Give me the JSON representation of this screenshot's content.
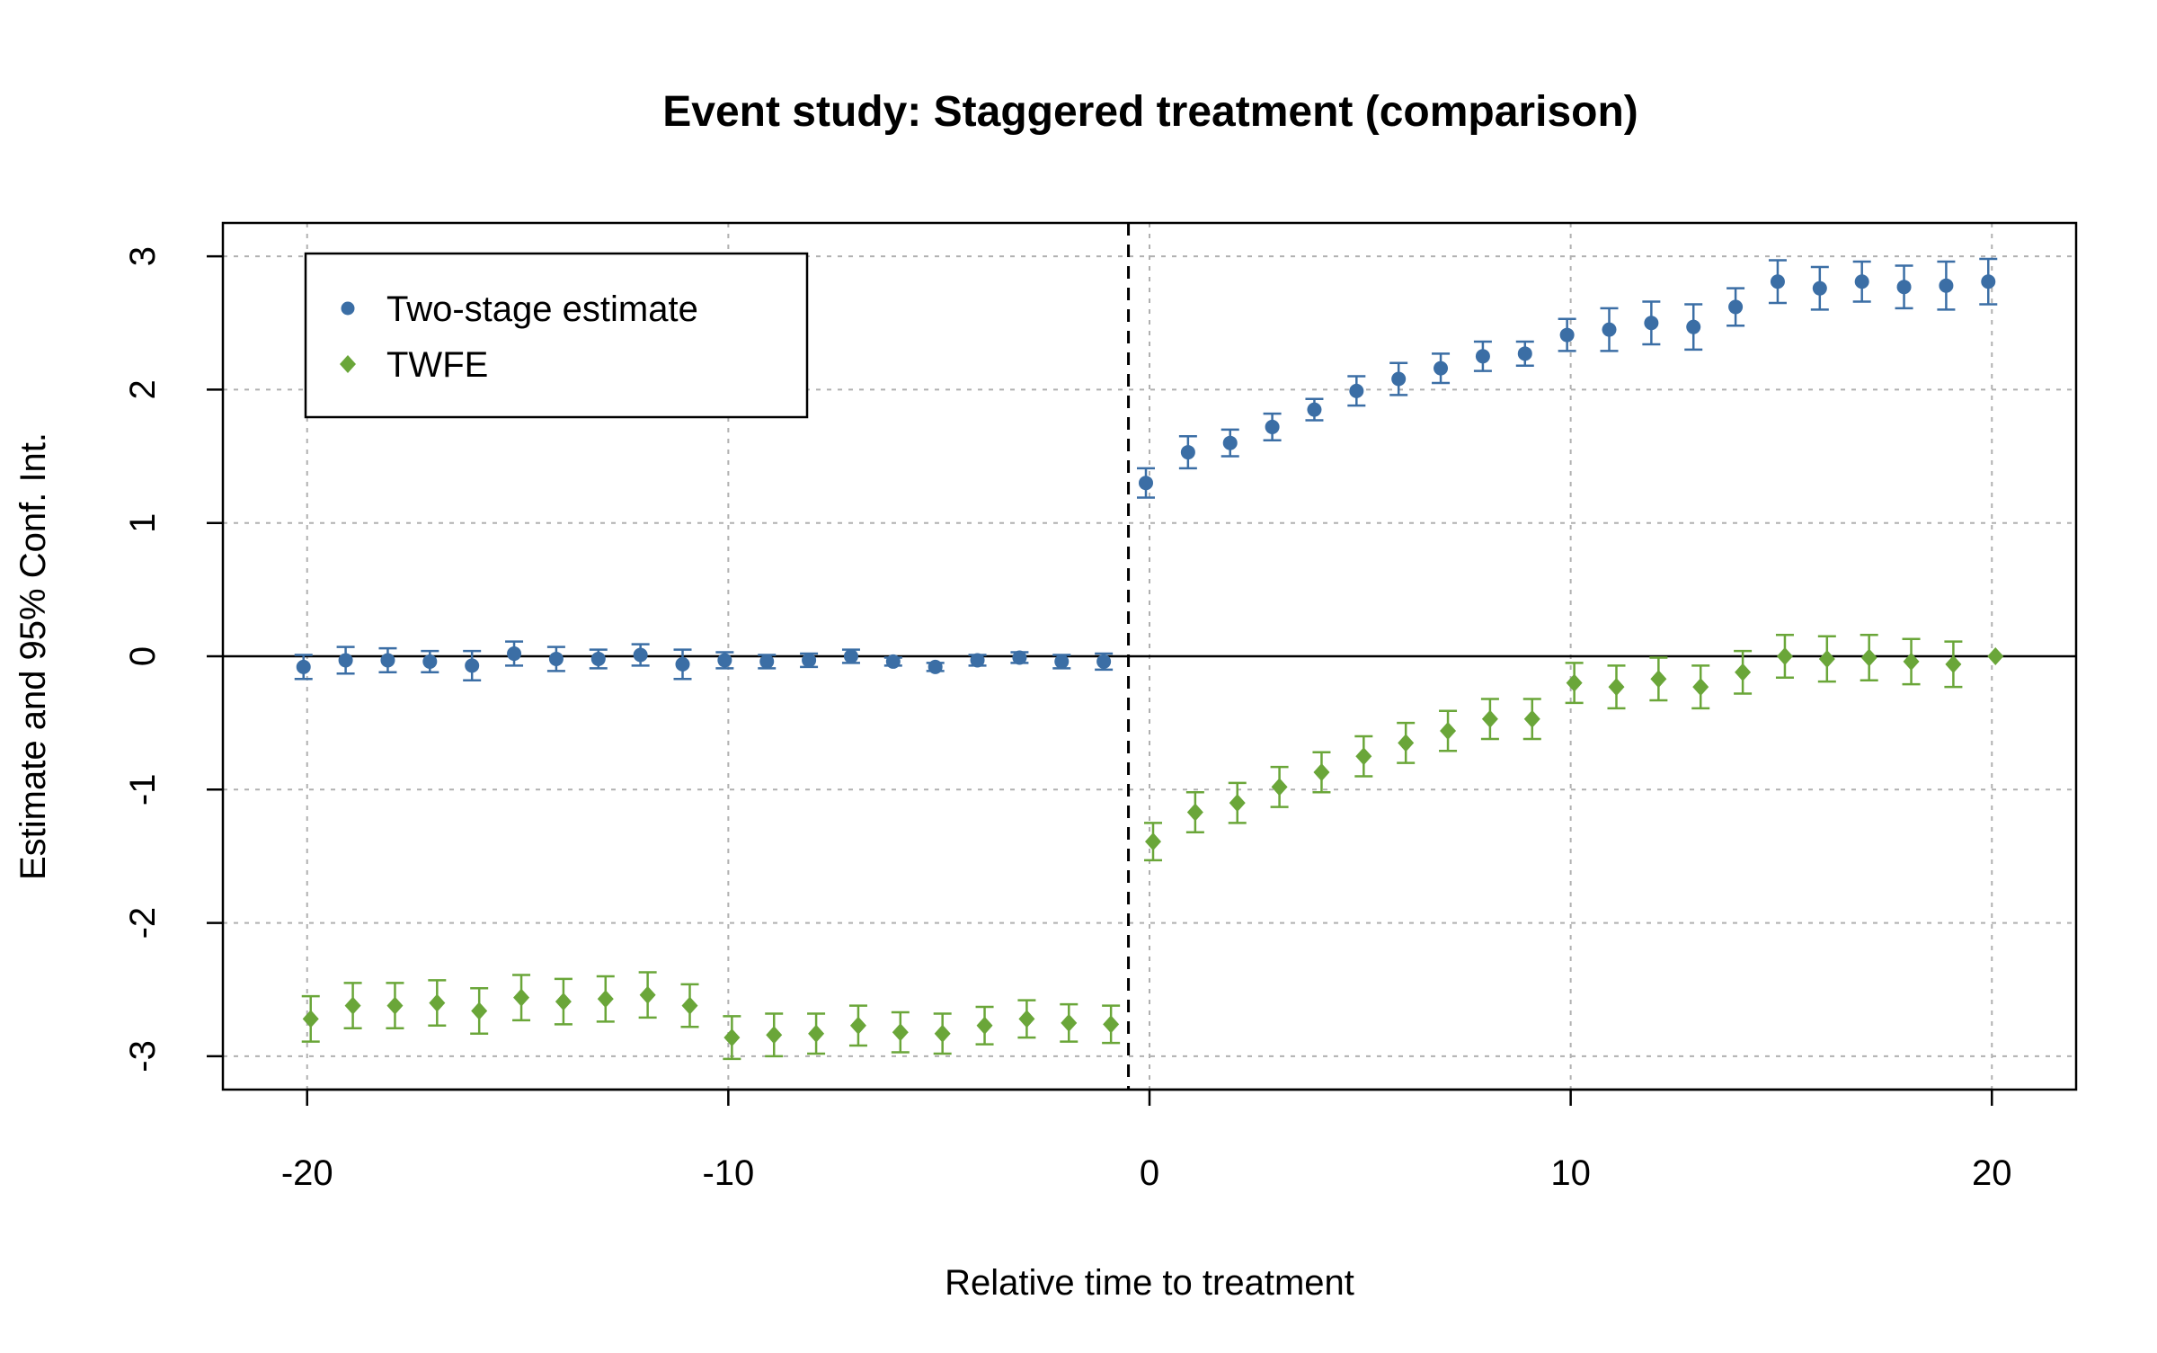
{
  "chart_data": {
    "type": "scatter",
    "title": "Event study: Staggered treatment (comparison)",
    "xlabel": "Relative time to treatment",
    "ylabel": "Estimate and 95% Conf. Int.",
    "xlim": [
      -22,
      22
    ],
    "ylim": [
      -3.25,
      3.25
    ],
    "x_ticks": [
      -20,
      -10,
      0,
      10,
      20
    ],
    "y_ticks": [
      -3,
      -2,
      -1,
      0,
      1,
      2,
      3
    ],
    "x_tick_labels": [
      "-20",
      "-10",
      "0",
      "10",
      "20"
    ],
    "y_tick_labels": [
      "-3",
      "-2",
      "-1",
      "0",
      "1",
      "2",
      "3"
    ],
    "grid": true,
    "reference_lines": {
      "horizontal_solid_y": 0,
      "vertical_dashed_x": -0.5
    },
    "legend_position": "top-left",
    "series": [
      {
        "name": "Two-stage estimate",
        "color": "#3b6ea5",
        "marker": "circle",
        "x": [
          -20,
          -19,
          -18,
          -17,
          -16,
          -15,
          -14,
          -13,
          -12,
          -11,
          -10,
          -9,
          -8,
          -7,
          -6,
          -5,
          -4,
          -3,
          -2,
          -1,
          0,
          1,
          2,
          3,
          4,
          5,
          6,
          7,
          8,
          9,
          10,
          11,
          12,
          13,
          14,
          15,
          16,
          17,
          18,
          19,
          20
        ],
        "y": [
          -0.08,
          -0.03,
          -0.03,
          -0.04,
          -0.07,
          0.02,
          -0.02,
          -0.02,
          0.01,
          -0.06,
          -0.03,
          -0.04,
          -0.03,
          0.0,
          -0.04,
          -0.08,
          -0.03,
          -0.01,
          -0.04,
          -0.04,
          1.3,
          1.53,
          1.6,
          1.72,
          1.85,
          1.99,
          2.08,
          2.16,
          2.25,
          2.27,
          2.41,
          2.45,
          2.5,
          2.47,
          2.62,
          2.81,
          2.76,
          2.81,
          2.77,
          2.78,
          2.81
        ],
        "ci_half_width": [
          0.09,
          0.1,
          0.09,
          0.08,
          0.11,
          0.09,
          0.09,
          0.07,
          0.08,
          0.11,
          0.06,
          0.05,
          0.05,
          0.05,
          0.03,
          0.03,
          0.04,
          0.04,
          0.05,
          0.06,
          0.11,
          0.12,
          0.1,
          0.1,
          0.08,
          0.11,
          0.12,
          0.11,
          0.11,
          0.09,
          0.12,
          0.16,
          0.16,
          0.17,
          0.14,
          0.16,
          0.16,
          0.15,
          0.16,
          0.18,
          0.17
        ]
      },
      {
        "name": "TWFE",
        "color": "#6aa639",
        "marker": "diamond",
        "x": [
          -20,
          -19,
          -18,
          -17,
          -16,
          -15,
          -14,
          -13,
          -12,
          -11,
          -10,
          -9,
          -8,
          -7,
          -6,
          -5,
          -4,
          -3,
          -2,
          -1,
          0,
          1,
          2,
          3,
          4,
          5,
          6,
          7,
          8,
          9,
          10,
          11,
          12,
          13,
          14,
          15,
          16,
          17,
          18,
          19,
          20
        ],
        "y": [
          -2.72,
          -2.62,
          -2.62,
          -2.6,
          -2.66,
          -2.56,
          -2.59,
          -2.57,
          -2.54,
          -2.62,
          -2.86,
          -2.84,
          -2.83,
          -2.77,
          -2.82,
          -2.83,
          -2.77,
          -2.72,
          -2.75,
          -2.76,
          -1.39,
          -1.17,
          -1.1,
          -0.98,
          -0.87,
          -0.75,
          -0.65,
          -0.56,
          -0.47,
          -0.47,
          -0.2,
          -0.23,
          -0.17,
          -0.23,
          -0.12,
          0.0,
          -0.02,
          -0.01,
          -0.04,
          -0.06,
          0.0
        ],
        "ci_half_width": [
          0.17,
          0.17,
          0.17,
          0.17,
          0.17,
          0.17,
          0.17,
          0.17,
          0.17,
          0.16,
          0.16,
          0.16,
          0.15,
          0.15,
          0.15,
          0.15,
          0.14,
          0.14,
          0.14,
          0.14,
          0.14,
          0.15,
          0.15,
          0.15,
          0.15,
          0.15,
          0.15,
          0.15,
          0.15,
          0.15,
          0.15,
          0.16,
          0.16,
          0.16,
          0.16,
          0.16,
          0.17,
          0.17,
          0.17,
          0.17,
          0.0
        ]
      }
    ]
  }
}
